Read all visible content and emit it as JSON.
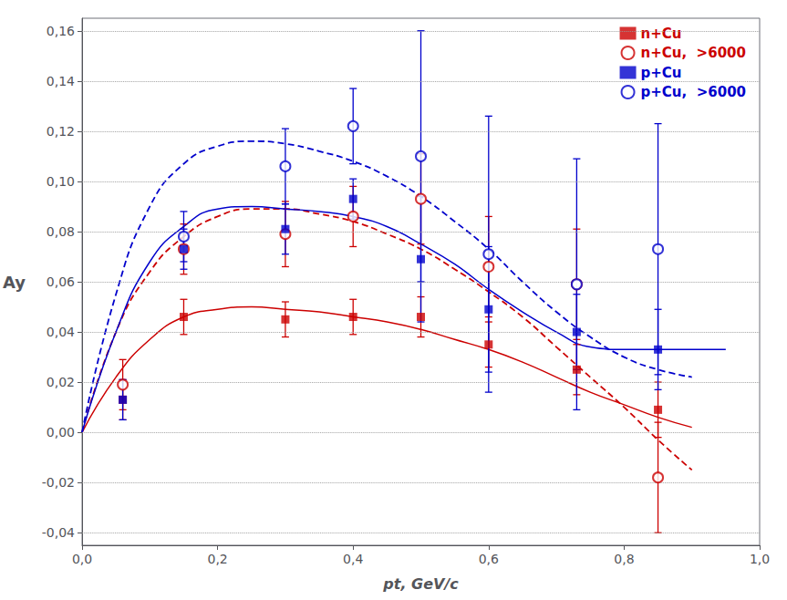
{
  "chart_data": {
    "type": "scatter",
    "xlabel": "pt, GeV/c",
    "ylabel": "Ay",
    "xlim": [
      0.0,
      1.0
    ],
    "ylim": [
      -0.045,
      0.165
    ],
    "xticks": [
      {
        "value": 0.0,
        "label": "0,0"
      },
      {
        "value": 0.2,
        "label": "0,2"
      },
      {
        "value": 0.4,
        "label": "0,4"
      },
      {
        "value": 0.6,
        "label": "0,6"
      },
      {
        "value": 0.8,
        "label": "0,8"
      },
      {
        "value": 1.0,
        "label": "1,0"
      }
    ],
    "yticks": [
      {
        "value": -0.04,
        "label": "-0,04"
      },
      {
        "value": -0.02,
        "label": "-0,02"
      },
      {
        "value": 0.0,
        "label": "0,00"
      },
      {
        "value": 0.02,
        "label": "0,02"
      },
      {
        "value": 0.04,
        "label": "0,04"
      },
      {
        "value": 0.06,
        "label": "0,06"
      },
      {
        "value": 0.08,
        "label": "0,08"
      },
      {
        "value": 0.1,
        "label": "0,10"
      },
      {
        "value": 0.12,
        "label": "0,12"
      },
      {
        "value": 0.14,
        "label": "0,14"
      },
      {
        "value": 0.16,
        "label": "0,16"
      }
    ],
    "grid": true,
    "legend": "upper right",
    "series": [
      {
        "type": "line",
        "color": "#cc0000",
        "line_style": "solid",
        "x": [
          0.0,
          0.05,
          0.1,
          0.15,
          0.2,
          0.25,
          0.3,
          0.35,
          0.4,
          0.45,
          0.5,
          0.55,
          0.6,
          0.65,
          0.7,
          0.75,
          0.8,
          0.85,
          0.9
        ],
        "values": [
          0.0,
          0.022,
          0.037,
          0.046,
          0.049,
          0.05,
          0.049,
          0.048,
          0.046,
          0.044,
          0.041,
          0.037,
          0.033,
          0.028,
          0.022,
          0.016,
          0.011,
          0.006,
          0.002
        ]
      },
      {
        "type": "line",
        "color": "#cc0000",
        "line_style": "dashed",
        "x": [
          0.0,
          0.05,
          0.1,
          0.15,
          0.2,
          0.25,
          0.3,
          0.35,
          0.4,
          0.45,
          0.5,
          0.55,
          0.6,
          0.65,
          0.7,
          0.75,
          0.8,
          0.85,
          0.9
        ],
        "values": [
          0.0,
          0.04,
          0.064,
          0.078,
          0.086,
          0.089,
          0.089,
          0.087,
          0.084,
          0.079,
          0.073,
          0.065,
          0.056,
          0.046,
          0.034,
          0.022,
          0.01,
          -0.003,
          -0.015
        ]
      },
      {
        "type": "line",
        "color": "#0000cc",
        "line_style": "solid",
        "x": [
          0.0,
          0.05,
          0.1,
          0.15,
          0.2,
          0.25,
          0.3,
          0.35,
          0.4,
          0.45,
          0.5,
          0.55,
          0.6,
          0.65,
          0.7,
          0.75,
          0.8,
          0.85,
          0.9,
          0.95
        ],
        "values": [
          0.0,
          0.04,
          0.068,
          0.082,
          0.089,
          0.09,
          0.089,
          0.088,
          0.086,
          0.082,
          0.075,
          0.067,
          0.057,
          0.048,
          0.04,
          0.034,
          0.033,
          0.033,
          0.033,
          0.033
        ]
      },
      {
        "type": "line",
        "color": "#0000cc",
        "line_style": "dashed",
        "x": [
          0.0,
          0.05,
          0.1,
          0.15,
          0.2,
          0.25,
          0.3,
          0.35,
          0.4,
          0.45,
          0.5,
          0.55,
          0.6,
          0.65,
          0.7,
          0.75,
          0.8,
          0.85,
          0.9
        ],
        "values": [
          0.0,
          0.055,
          0.09,
          0.107,
          0.114,
          0.116,
          0.115,
          0.112,
          0.108,
          0.102,
          0.094,
          0.084,
          0.073,
          0.06,
          0.048,
          0.038,
          0.03,
          0.025,
          0.022
        ]
      },
      {
        "type": "scatter",
        "name": "n+Cu",
        "color": "#cc0000",
        "marker": "square",
        "x": [
          0.06,
          0.15,
          0.3,
          0.4,
          0.5,
          0.6,
          0.73,
          0.85
        ],
        "values": [
          0.013,
          0.046,
          0.045,
          0.046,
          0.046,
          0.035,
          0.025,
          0.009
        ],
        "errors": [
          0.008,
          0.007,
          0.007,
          0.007,
          0.008,
          0.009,
          0.01,
          0.011
        ]
      },
      {
        "type": "scatter",
        "name": "n+Cu,  >6000",
        "color": "#cc0000",
        "marker": "open_circle",
        "x": [
          0.06,
          0.15,
          0.3,
          0.4,
          0.5,
          0.6,
          0.73,
          0.85
        ],
        "values": [
          0.019,
          0.073,
          0.079,
          0.086,
          0.093,
          0.066,
          0.059,
          -0.018
        ],
        "errors": [
          0.01,
          0.01,
          0.013,
          0.012,
          0.018,
          0.02,
          0.022,
          0.022
        ]
      },
      {
        "type": "scatter",
        "name": "p+Cu",
        "color": "#0000cc",
        "marker": "square",
        "x": [
          0.06,
          0.15,
          0.3,
          0.4,
          0.5,
          0.6,
          0.73,
          0.85
        ],
        "values": [
          0.013,
          0.073,
          0.081,
          0.093,
          0.069,
          0.049,
          0.04,
          0.033
        ],
        "errors": [
          0.008,
          0.008,
          0.01,
          0.008,
          0.025,
          0.025,
          0.015,
          0.016
        ]
      },
      {
        "type": "scatter",
        "name": "p+Cu,  >6000",
        "color": "#0000cc",
        "marker": "open_circle",
        "x": [
          0.15,
          0.3,
          0.4,
          0.5,
          0.6,
          0.73,
          0.85
        ],
        "values": [
          0.078,
          0.106,
          0.122,
          0.11,
          0.071,
          0.059,
          0.073
        ],
        "errors": [
          0.01,
          0.015,
          0.015,
          0.05,
          0.055,
          0.05,
          0.05
        ]
      }
    ]
  }
}
